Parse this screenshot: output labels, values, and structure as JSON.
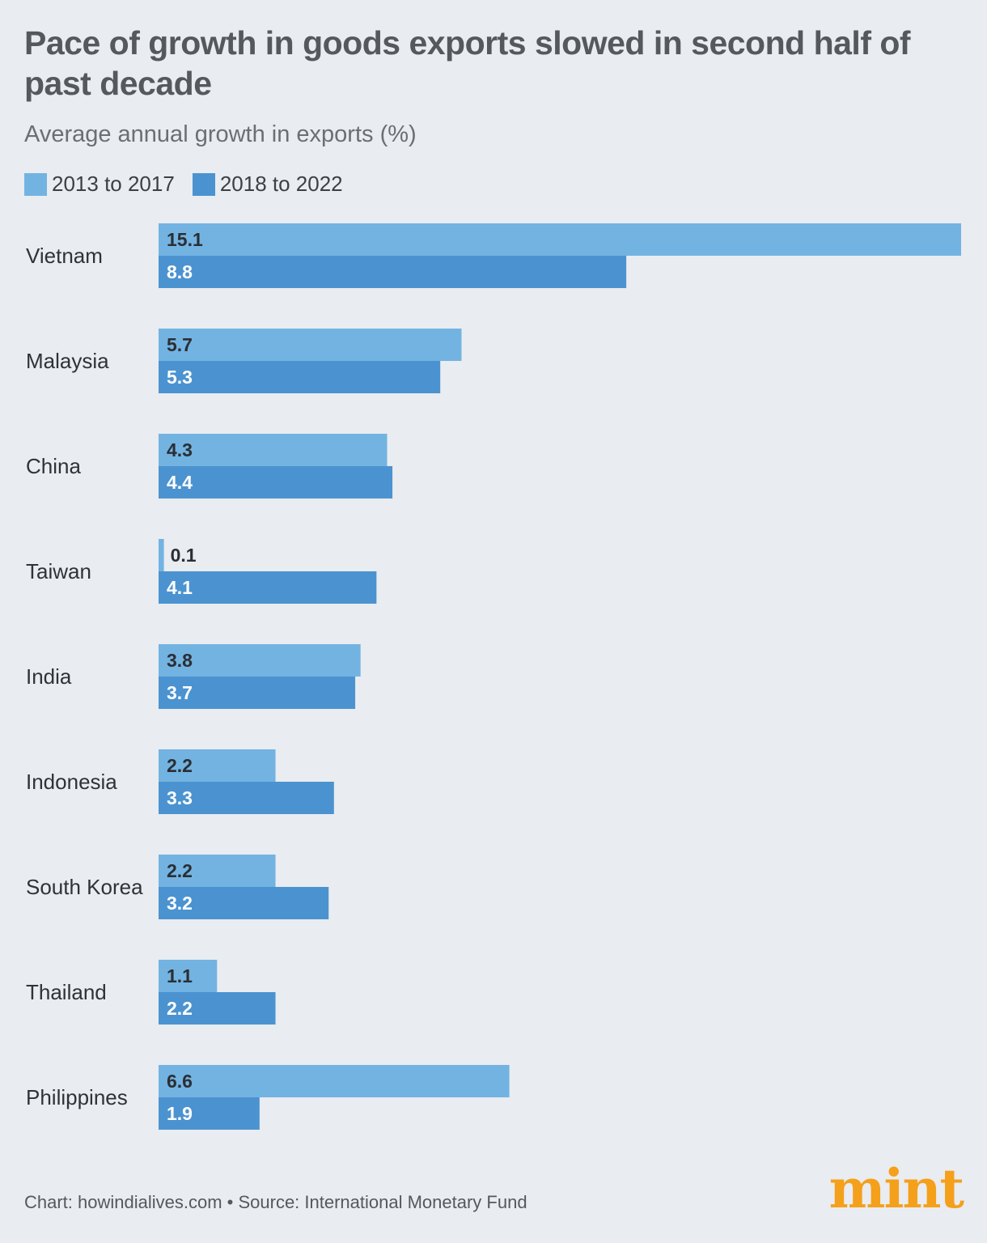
{
  "title": "Pace of growth in goods exports slowed in second half of past decade",
  "subtitle": "Average annual growth in exports (%)",
  "footer": "Chart: howindialives.com • Source: International Monetary Fund",
  "logo": "mint",
  "colors": {
    "series1": "#72b3e2",
    "series2": "#4b93d0",
    "label_dark": "#2b2e33",
    "label_light": "#ffffff",
    "background": "#e9ecf0",
    "logo": "#f5a01a"
  },
  "chart_data": {
    "type": "bar",
    "orientation": "horizontal",
    "title": "Pace of growth in goods exports slowed in second half of past decade",
    "subtitle": "Average annual growth in exports (%)",
    "xlabel": "",
    "ylabel": "",
    "xlim": [
      0,
      15.1
    ],
    "grid": false,
    "legend_position": "top-left",
    "categories": [
      "Vietnam",
      "Malaysia",
      "China",
      "Taiwan",
      "India",
      "Indonesia",
      "South Korea",
      "Thailand",
      "Philippines"
    ],
    "series": [
      {
        "name": "2013 to 2017",
        "values": [
          15.1,
          5.7,
          4.3,
          0.1,
          3.8,
          2.2,
          2.2,
          1.1,
          6.6
        ]
      },
      {
        "name": "2018 to 2022",
        "values": [
          8.8,
          5.3,
          4.4,
          4.1,
          3.7,
          3.3,
          3.2,
          2.2,
          1.9
        ]
      }
    ]
  }
}
